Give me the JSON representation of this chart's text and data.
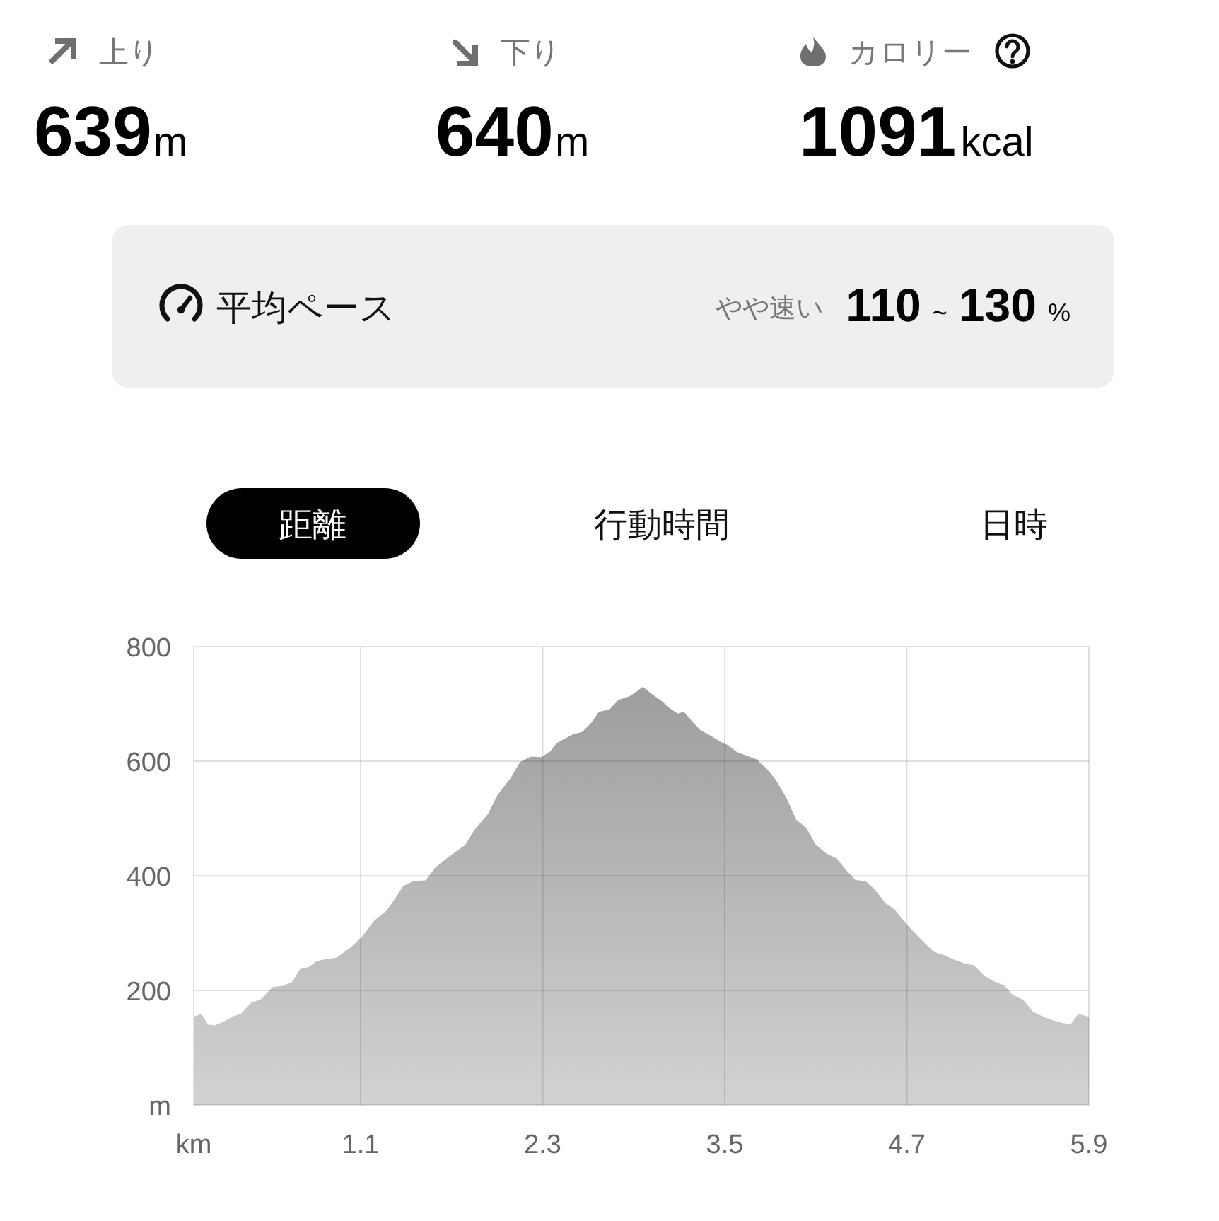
{
  "chart_data": [
    {
      "type": "other",
      "annotations": [
        "上り",
        "**639**m",
        "下り",
        "**640**m",
        "カロリー",
        "**1091**kcal",
        "平均ペース",
        "やや速い",
        "**110**~**130**%",
        "距離",
        "行動時間",
        "日時"
      ]
    },
    {
      "type": "area",
      "color": "#b4b4b4",
      "grid": true,
      "xlim": [
        0,
        5.9
      ],
      "ylim": [
        0,
        800
      ],
      "xticks": [
        {
          "value": 0,
          "label": "km"
        },
        1.1,
        2.3,
        3.5,
        4.7,
        5.9
      ],
      "yticks": [
        {
          "value": 0,
          "label": "m"
        },
        200,
        400,
        600,
        800
      ],
      "x": [
        0,
        0.05,
        0.095,
        0.14,
        0.2,
        0.27,
        0.31,
        0.38,
        0.44,
        0.52,
        0.59,
        0.65,
        0.7,
        0.76,
        0.81,
        0.875,
        0.94,
        1.03,
        1.11,
        1.19,
        1.27,
        1.33,
        1.38,
        1.45,
        1.53,
        1.59,
        1.68,
        1.79,
        1.85,
        1.94,
        2.0,
        2.09,
        2.15,
        2.22,
        2.29,
        2.35,
        2.39,
        2.43,
        2.5,
        2.56,
        2.62,
        2.67,
        2.74,
        2.8,
        2.87,
        2.92,
        2.96,
        3.02,
        3.08,
        3.14,
        3.19,
        3.23,
        3.28,
        3.34,
        3.41,
        3.47,
        3.52,
        3.58,
        3.65,
        3.71,
        3.78,
        3.84,
        3.91,
        3.97,
        4.04,
        4.1,
        4.17,
        4.24,
        4.3,
        4.36,
        4.43,
        4.49,
        4.56,
        4.62,
        4.69,
        4.75,
        4.82,
        4.88,
        4.95,
        5.01,
        5.08,
        5.14,
        5.21,
        5.27,
        5.34,
        5.4,
        5.47,
        5.53,
        5.6,
        5.66,
        5.73,
        5.78,
        5.83,
        5.9
      ],
      "values": [
        154,
        159,
        140,
        139,
        146,
        156,
        159,
        179,
        184,
        206,
        208,
        215,
        237,
        241,
        251,
        255,
        257,
        274,
        294,
        322,
        339,
        361,
        382,
        391,
        392,
        414,
        433,
        454,
        480,
        508,
        540,
        571,
        598,
        608,
        607,
        617,
        631,
        637,
        647,
        651,
        667,
        686,
        690,
        707,
        713,
        722,
        730,
        717,
        706,
        692,
        683,
        686,
        671,
        654,
        644,
        634,
        628,
        616,
        609,
        603,
        586,
        566,
        534,
        498,
        483,
        454,
        439,
        430,
        410,
        393,
        390,
        376,
        352,
        341,
        318,
        301,
        282,
        267,
        261,
        254,
        247,
        244,
        226,
        216,
        209,
        192,
        183,
        163,
        154,
        148,
        143,
        141,
        159,
        154
      ]
    }
  ]
}
